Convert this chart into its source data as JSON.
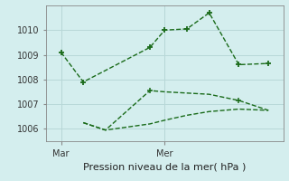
{
  "xlabel": "Pression niveau de la mer( hPa )",
  "bg_color": "#d4eeee",
  "grid_color": "#b8d8d8",
  "line_color": "#1a6b1a",
  "ylim": [
    1005.5,
    1011.0
  ],
  "xlim": [
    0,
    16
  ],
  "ytick_values": [
    1006,
    1007,
    1008,
    1009,
    1010
  ],
  "xtick_positions": [
    1,
    8
  ],
  "xtick_labels": [
    "Mar",
    "Mer"
  ],
  "line1_x": [
    1,
    2.5,
    7,
    8,
    9.5,
    11,
    13,
    15
  ],
  "line1_y": [
    1009.1,
    1007.9,
    1009.3,
    1010.0,
    1010.05,
    1010.7,
    1008.6,
    1008.65
  ],
  "line2_x": [
    2.5,
    4,
    7,
    8,
    9.5,
    11,
    13,
    15
  ],
  "line2_y": [
    1006.25,
    1005.95,
    1007.55,
    1007.5,
    1007.45,
    1007.4,
    1007.15,
    1006.75
  ],
  "line3_x": [
    2.5,
    4,
    7,
    8,
    9.5,
    11,
    13,
    15
  ],
  "line3_y": [
    1006.25,
    1005.95,
    1006.2,
    1006.35,
    1006.55,
    1006.7,
    1006.8,
    1006.75
  ],
  "line1_markers": [
    0,
    1,
    4,
    5,
    6,
    7
  ],
  "ylabel_fontsize": 7,
  "xlabel_fontsize": 8,
  "tick_labelsize": 7
}
